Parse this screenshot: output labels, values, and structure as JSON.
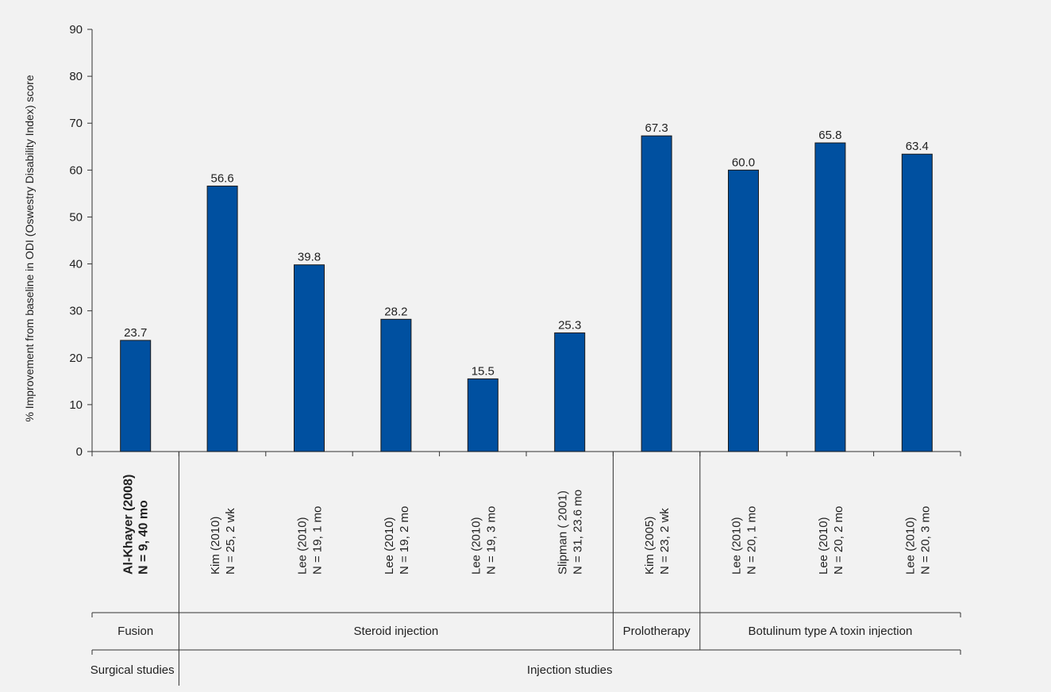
{
  "chart_data": {
    "type": "bar",
    "ylabel": "% Improvement from baseline in ODI (Oswestry Disability Index) score",
    "ylim": [
      0,
      90
    ],
    "yticks": [
      0,
      10,
      20,
      30,
      40,
      50,
      60,
      70,
      80,
      90
    ],
    "grid": false,
    "bar_color": "#0050a0",
    "categories": [
      {
        "line1": "Al-Khayer (2008)",
        "line2": "N = 9, 40 mo",
        "bold": true
      },
      {
        "line1": "Kim (2010)",
        "line2": "N = 25, 2 wk"
      },
      {
        "line1": "Lee (2010)",
        "line2": "N = 19, 1 mo"
      },
      {
        "line1": "Lee (2010)",
        "line2": "N = 19, 2 mo"
      },
      {
        "line1": "Lee (2010)",
        "line2": "N = 19, 3 mo"
      },
      {
        "line1": "Slipman ( 2001)",
        "line2": "N = 31, 23.6 mo"
      },
      {
        "line1": "Kim (2005)",
        "line2": "N = 23,  2 wk"
      },
      {
        "line1": "Lee (2010)",
        "line2": "N = 20, 1 mo"
      },
      {
        "line1": "Lee (2010)",
        "line2": "N = 20, 2 mo"
      },
      {
        "line1": "Lee (2010)",
        "line2": "N = 20, 3 mo"
      }
    ],
    "values": [
      23.7,
      56.6,
      39.8,
      28.2,
      15.5,
      25.3,
      67.3,
      60.0,
      65.8,
      63.4
    ],
    "value_labels": [
      "23.7",
      "56.6",
      "39.8",
      "28.2",
      "15.5",
      "25.3",
      "67.3",
      "60.0",
      "65.8",
      "63.4"
    ],
    "groups": [
      {
        "label": "Fusion",
        "start": 0,
        "end": 0
      },
      {
        "label": "Steroid injection",
        "start": 1,
        "end": 5
      },
      {
        "label": "Prolotherapy",
        "start": 6,
        "end": 6
      },
      {
        "label": "Botulinum type A toxin injection",
        "start": 7,
        "end": 9
      }
    ],
    "supergroups": [
      {
        "label": "Surgical studies",
        "start": 0,
        "end": 0
      },
      {
        "label": "Injection studies",
        "start": 1,
        "end": 9
      }
    ]
  }
}
